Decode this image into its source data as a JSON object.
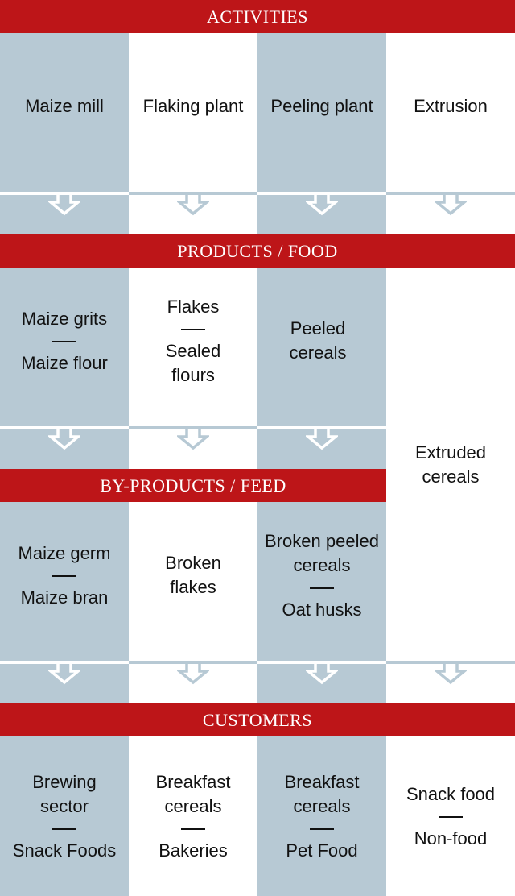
{
  "colors": {
    "band_red": "#bd1518",
    "column_blue": "#b7c9d4",
    "column_white": "#ffffff",
    "text": "#111111"
  },
  "bands": {
    "activities": "ACTIVITIES",
    "products_food": "PRODUCTS / FOOD",
    "byproducts_feed": "BY-PRODUCTS / FEED",
    "customers": "CUSTOMERS"
  },
  "activities": [
    "Maize mill",
    "Flaking plant",
    "Peeling plant",
    "Extrusion"
  ],
  "products": {
    "maize_mill": [
      "Maize grits",
      "Maize flour"
    ],
    "flaking_plant": [
      "Flakes",
      "Sealed flours"
    ],
    "peeling_plant": [
      "Peeled cereals"
    ],
    "extrusion": [
      "Extruded cereals"
    ]
  },
  "byproducts": {
    "maize_mill": [
      "Maize germ",
      "Maize bran"
    ],
    "flaking_plant": [
      "Broken flakes"
    ],
    "peeling_plant": [
      "Broken peeled cereals",
      "Oat husks"
    ]
  },
  "customers": {
    "maize_mill": [
      "Brewing sector",
      "Snack Foods"
    ],
    "flaking_plant": [
      "Breakfast cereals",
      "Bakeries"
    ],
    "peeling_plant": [
      "Breakfast cereals",
      "Pet Food"
    ],
    "extrusion": [
      "Snack food",
      "Non-food"
    ]
  },
  "icons": {
    "flow_arrow": "chevron-down-arrow-icon",
    "separator": "dash-separator"
  }
}
